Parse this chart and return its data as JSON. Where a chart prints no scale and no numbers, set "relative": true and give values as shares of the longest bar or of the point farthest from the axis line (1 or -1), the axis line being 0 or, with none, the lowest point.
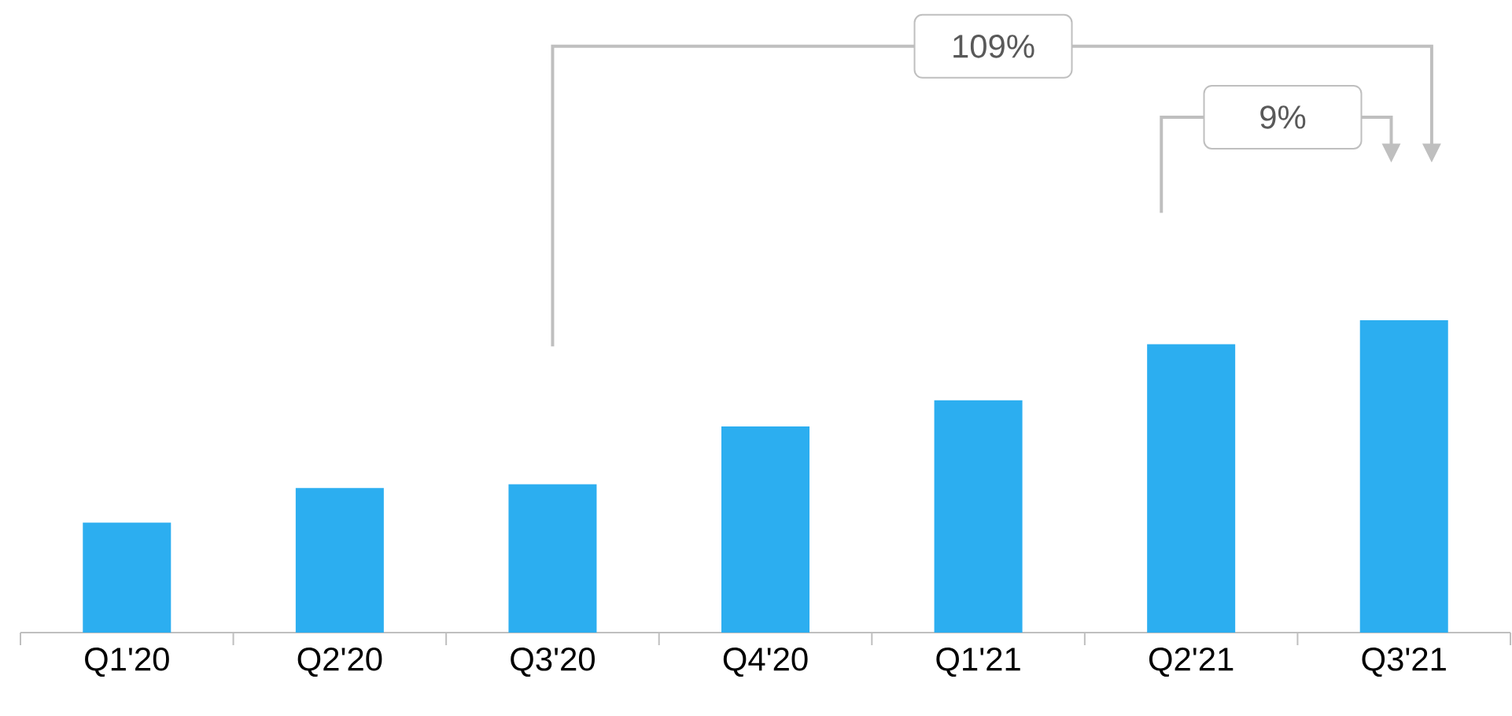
{
  "chart_data": {
    "type": "bar",
    "relative": true,
    "categories": [
      "Q1'20",
      "Q2'20",
      "Q3'20",
      "Q4'20",
      "Q1'21",
      "Q2'21",
      "Q3'21"
    ],
    "values": [
      0.352,
      0.463,
      0.475,
      0.66,
      0.744,
      0.923,
      1
    ],
    "color": "#2caef0",
    "annotations": [
      "109%",
      "9%"
    ]
  }
}
